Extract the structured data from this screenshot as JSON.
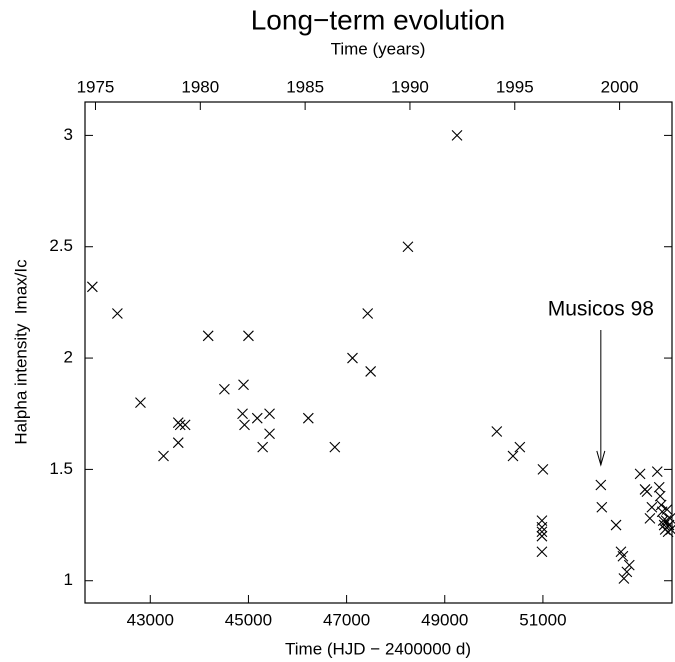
{
  "chart_data": {
    "type": "scatter",
    "title": "Long−term evolution",
    "x2label": "Time (years)",
    "xlabel": "Time (HJD − 2400000 d)",
    "ylabel": "Halpha intensity  Imax/Ic",
    "xlim": [
      41670,
      53630
    ],
    "xticks": [
      43000,
      45000,
      47000,
      49000,
      51000
    ],
    "x2lim": [
      1974.5,
      2002.5
    ],
    "x2ticks": [
      1975,
      1980,
      1985,
      1990,
      1995,
      2000
    ],
    "ylim": [
      0.9,
      3.15
    ],
    "yticks": [
      1,
      1.5,
      2,
      2.5,
      3
    ],
    "color": "#000000",
    "marker": "x",
    "x": [
      41820,
      42330,
      42800,
      43270,
      43570,
      43610,
      43570,
      43710,
      44180,
      44510,
      44880,
      44900,
      44920,
      45000,
      45180,
      45290,
      45430,
      45430,
      46220,
      46760,
      47120,
      47430,
      47490,
      48250,
      49250,
      50060,
      50390,
      50530,
      51000,
      50980,
      50980,
      50980,
      50980,
      50980,
      52180,
      52200,
      52490,
      52590,
      52630,
      52650,
      52710,
      52760,
      52980,
      53080,
      53120,
      53180,
      53220,
      53330,
      53370,
      53390,
      53410,
      53430,
      53450,
      53470,
      53490,
      53510,
      53530,
      53550,
      53570,
      53590,
      53610
    ],
    "y": [
      2.32,
      2.2,
      1.8,
      1.56,
      1.71,
      1.7,
      1.62,
      1.7,
      2.1,
      1.86,
      1.75,
      1.88,
      1.7,
      2.1,
      1.73,
      1.6,
      1.75,
      1.66,
      1.73,
      1.6,
      2.0,
      2.2,
      1.94,
      2.5,
      3.0,
      1.67,
      1.56,
      1.6,
      1.5,
      1.27,
      1.24,
      1.22,
      1.2,
      1.13,
      1.43,
      1.33,
      1.25,
      1.13,
      1.11,
      1.01,
      1.04,
      1.07,
      1.48,
      1.41,
      1.4,
      1.28,
      1.33,
      1.49,
      1.42,
      1.38,
      1.34,
      1.31,
      1.27,
      1.25,
      1.23,
      1.27,
      1.32,
      1.22,
      1.25,
      1.28,
      1.23
    ],
    "annotations": [
      {
        "text": "Musicos 98",
        "x": 52180,
        "y": 1.52
      }
    ]
  }
}
